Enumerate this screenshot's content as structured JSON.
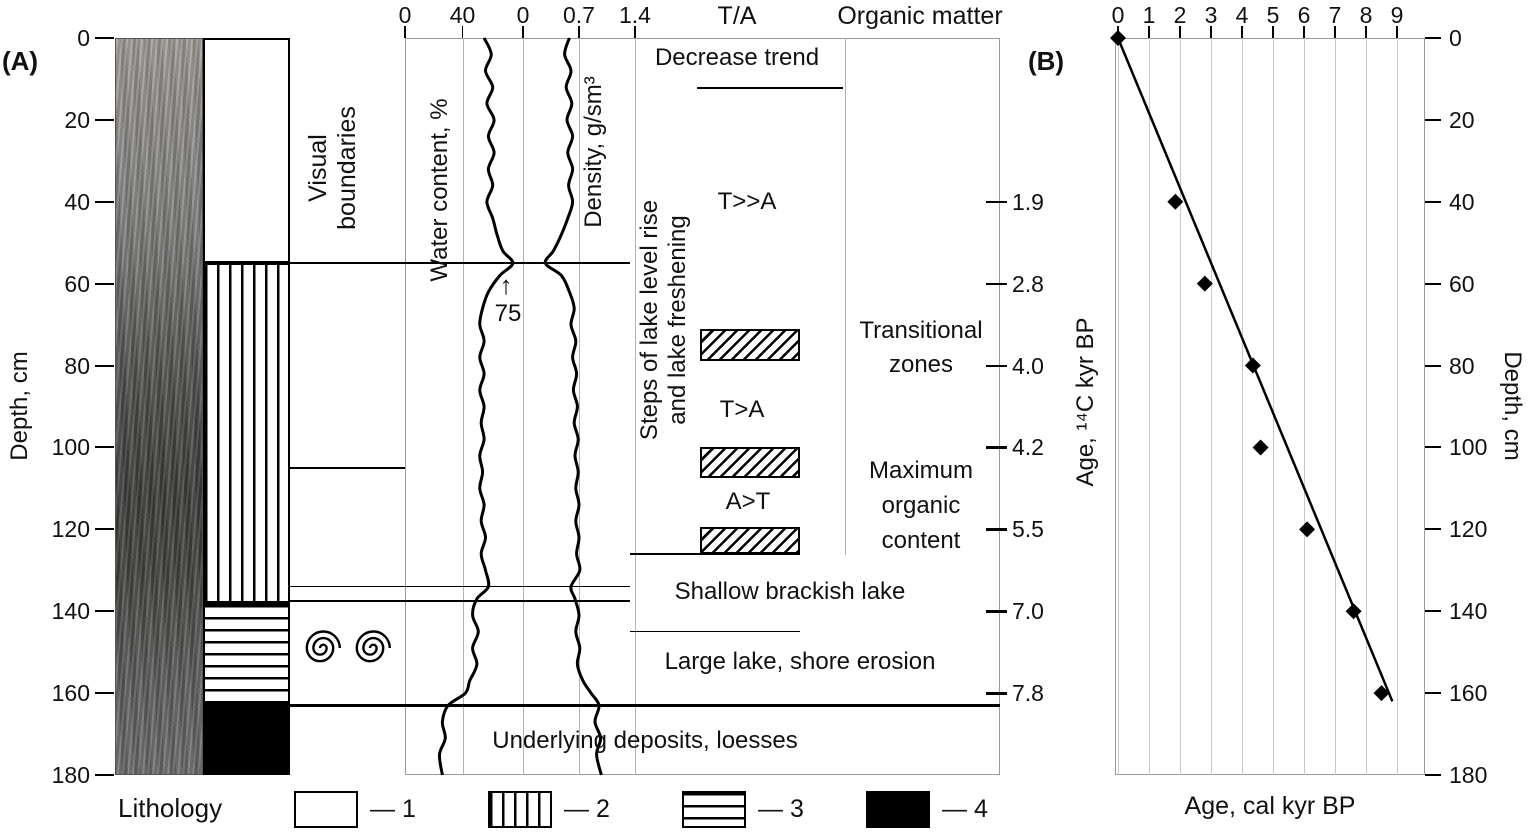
{
  "figure": {
    "panelA_label": "(A)",
    "panelB_label": "(B)"
  },
  "colors": {
    "ink": "#111111",
    "grid_light": "#c9c9c9",
    "grid_mid": "#b3b3b3",
    "frame": "#9a9a9a"
  },
  "icons": {
    "up_arrow": "↑",
    "shell": "gastropod-spiral"
  },
  "axes": {
    "depth_label_left": "Depth, cm",
    "depth_label_right": "Depth, cm",
    "depth_ticks": [
      0,
      20,
      40,
      60,
      80,
      100,
      120,
      140,
      160,
      180
    ],
    "water_label": "Water content, %",
    "water_ticks": [
      "0",
      "40"
    ],
    "density_label": "Density, g/sm³",
    "density_ticks": [
      "0",
      "0.7",
      "1.4"
    ],
    "ta_header": "T/A",
    "organic_header": "Organic matter",
    "age14c_label": "Age, ¹⁴C kyr BP",
    "age14c_ticks": [
      {
        "depth": 40,
        "label": "1.9"
      },
      {
        "depth": 60,
        "label": "2.8"
      },
      {
        "depth": 80,
        "label": "4.0"
      },
      {
        "depth": 100,
        "label": "4.2"
      },
      {
        "depth": 120,
        "label": "5.5"
      },
      {
        "depth": 140,
        "label": "7.0"
      },
      {
        "depth": 160,
        "label": "7.8"
      }
    ],
    "calkyr_label": "Age, cal kyr BP",
    "calkyr_ticks": [
      "0",
      "1",
      "2",
      "3",
      "4",
      "5",
      "6",
      "7",
      "8",
      "9"
    ]
  },
  "labels": {
    "visual_boundaries": "Visual boundaries",
    "water_annotation": "75",
    "decrease_trend": "Decrease trend",
    "steps": "Steps of lake level rise and lake freshening",
    "t_gg_a": "T>>A",
    "t_g_a": "T>A",
    "a_g_t": "A>T",
    "transitional": "Transitional zones",
    "max_organic": "Maximum organic content",
    "shallow": "Shallow brackish lake",
    "large_lake": "Large lake, shore erosion",
    "underlying": "Underlying deposits, loesses"
  },
  "lithology": {
    "legend_title": "Lithology",
    "units": [
      {
        "pattern": "blank",
        "from": 0,
        "to": 55
      },
      {
        "pattern": "vlines",
        "from": 55,
        "to": 138
      },
      {
        "pattern": "hlines",
        "from": 138,
        "to": 163
      },
      {
        "pattern": "solid",
        "from": 163,
        "to": 180
      }
    ],
    "legend": [
      {
        "pattern": "blank",
        "label": "— 1"
      },
      {
        "pattern": "vlines",
        "label": "— 2"
      },
      {
        "pattern": "hlines",
        "label": "— 3"
      },
      {
        "pattern": "solid",
        "label": "— 4"
      }
    ]
  },
  "chart_data": [
    {
      "type": "line",
      "name": "Water content profile",
      "xlabel": "Water content, %",
      "ylabel": "Depth, cm",
      "xticks": [
        0,
        40
      ],
      "ylim": [
        0,
        180
      ],
      "peak_annotation": {
        "depth": 55,
        "value": 75,
        "label": "75"
      },
      "points": [
        [
          0,
          55
        ],
        [
          4,
          60
        ],
        [
          8,
          56
        ],
        [
          12,
          61
        ],
        [
          16,
          57
        ],
        [
          20,
          62
        ],
        [
          24,
          58
        ],
        [
          28,
          62
        ],
        [
          32,
          58
        ],
        [
          36,
          61
        ],
        [
          40,
          57
        ],
        [
          44,
          61
        ],
        [
          48,
          64
        ],
        [
          52,
          68
        ],
        [
          55,
          75
        ],
        [
          58,
          66
        ],
        [
          62,
          58
        ],
        [
          66,
          54
        ],
        [
          70,
          52
        ],
        [
          74,
          55
        ],
        [
          78,
          52
        ],
        [
          82,
          55
        ],
        [
          86,
          52
        ],
        [
          90,
          55
        ],
        [
          94,
          53
        ],
        [
          98,
          55
        ],
        [
          102,
          52
        ],
        [
          106,
          54
        ],
        [
          110,
          52
        ],
        [
          114,
          55
        ],
        [
          118,
          53
        ],
        [
          122,
          56
        ],
        [
          126,
          53
        ],
        [
          130,
          56
        ],
        [
          134,
          58
        ],
        [
          137,
          50
        ],
        [
          141,
          47
        ],
        [
          145,
          51
        ],
        [
          149,
          47
        ],
        [
          153,
          50
        ],
        [
          157,
          45
        ],
        [
          160,
          42
        ],
        [
          163,
          30
        ],
        [
          167,
          26
        ],
        [
          171,
          28
        ],
        [
          175,
          24
        ],
        [
          180,
          26
        ]
      ]
    },
    {
      "type": "line",
      "name": "Density profile",
      "xlabel": "Density, g/sm³",
      "ylabel": "Depth, cm",
      "xticks": [
        0,
        0.7,
        1.4
      ],
      "ylim": [
        0,
        180
      ],
      "points": [
        [
          0,
          0.58
        ],
        [
          4,
          0.52
        ],
        [
          8,
          0.6
        ],
        [
          12,
          0.54
        ],
        [
          16,
          0.61
        ],
        [
          20,
          0.55
        ],
        [
          24,
          0.62
        ],
        [
          28,
          0.56
        ],
        [
          32,
          0.62
        ],
        [
          36,
          0.57
        ],
        [
          40,
          0.62
        ],
        [
          44,
          0.56
        ],
        [
          48,
          0.48
        ],
        [
          52,
          0.38
        ],
        [
          55,
          0.28
        ],
        [
          58,
          0.48
        ],
        [
          62,
          0.58
        ],
        [
          66,
          0.64
        ],
        [
          70,
          0.6
        ],
        [
          74,
          0.66
        ],
        [
          78,
          0.62
        ],
        [
          82,
          0.67
        ],
        [
          86,
          0.63
        ],
        [
          90,
          0.68
        ],
        [
          94,
          0.64
        ],
        [
          98,
          0.69
        ],
        [
          102,
          0.65
        ],
        [
          106,
          0.69
        ],
        [
          110,
          0.66
        ],
        [
          114,
          0.7
        ],
        [
          118,
          0.66
        ],
        [
          122,
          0.7
        ],
        [
          126,
          0.67
        ],
        [
          130,
          0.71
        ],
        [
          134,
          0.6
        ],
        [
          137,
          0.65
        ],
        [
          141,
          0.7
        ],
        [
          145,
          0.66
        ],
        [
          149,
          0.71
        ],
        [
          153,
          0.68
        ],
        [
          157,
          0.75
        ],
        [
          160,
          0.85
        ],
        [
          163,
          0.95
        ],
        [
          167,
          0.9
        ],
        [
          171,
          0.97
        ],
        [
          175,
          0.92
        ],
        [
          180,
          0.98
        ]
      ]
    },
    {
      "type": "scatter",
      "name": "Age–depth model",
      "xlabel": "Age, cal kyr BP",
      "ylabel": "Depth, cm",
      "xlim": [
        0,
        10
      ],
      "xticks": [
        0,
        1,
        2,
        3,
        4,
        5,
        6,
        7,
        8,
        9
      ],
      "ylim": [
        0,
        180
      ],
      "points": [
        {
          "age": 0,
          "depth": 0
        },
        {
          "age": 1.85,
          "depth": 40
        },
        {
          "age": 2.8,
          "depth": 60
        },
        {
          "age": 4.35,
          "depth": 80
        },
        {
          "age": 4.6,
          "depth": 100
        },
        {
          "age": 6.1,
          "depth": 120
        },
        {
          "age": 7.6,
          "depth": 140
        },
        {
          "age": 8.5,
          "depth": 160
        }
      ],
      "trend_line": {
        "from": {
          "age": 0,
          "depth": 0
        },
        "to": {
          "age": 8.85,
          "depth": 162
        }
      }
    }
  ]
}
